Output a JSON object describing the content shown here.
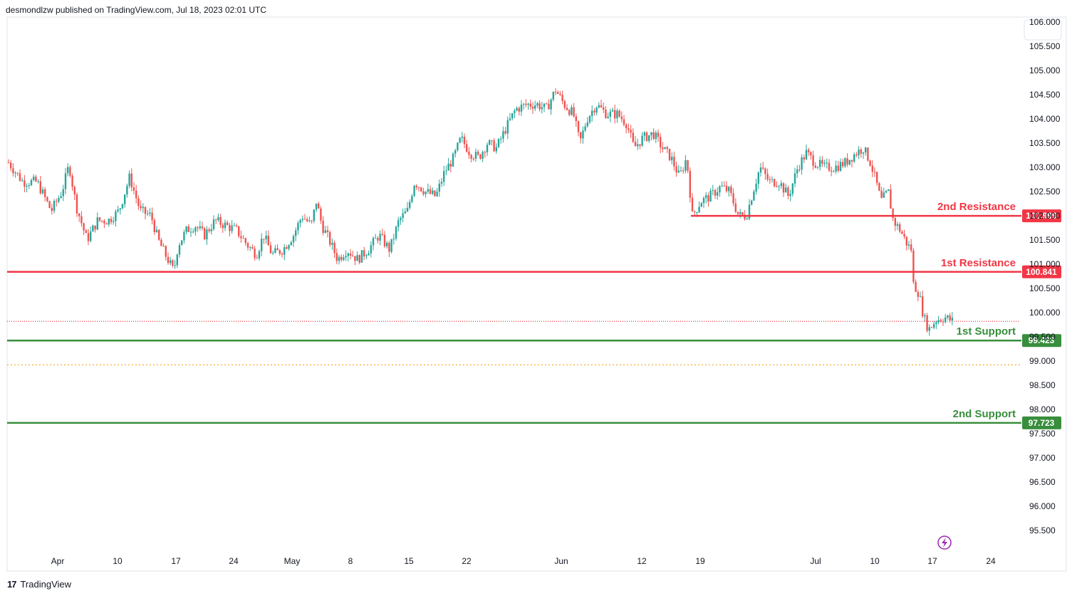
{
  "header": {
    "attribution": "desmondlzw published on TradingView.com, Jul 18, 2023 02:01 UTC"
  },
  "footer": {
    "brand": "TradingView",
    "logo_glyph": "17"
  },
  "colors": {
    "up": "#26a69a",
    "down": "#ef5350",
    "resistance": "#f23645",
    "support": "#388e3c",
    "dotted_orange": "#f5a623",
    "dotted_red": "#f23645",
    "bg": "#ffffff"
  },
  "lightning_icon": "lightning-icon",
  "chart_data": {
    "type": "candlestick",
    "title": "",
    "y_ticks": [
      "106.000",
      "105.500",
      "105.000",
      "104.500",
      "104.000",
      "103.500",
      "103.000",
      "102.500",
      "102.000",
      "101.500",
      "101.000",
      "100.500",
      "100.000",
      "99.500",
      "99.000",
      "98.500",
      "98.000",
      "97.500",
      "97.000",
      "96.500",
      "96.000",
      "95.500"
    ],
    "x_ticks": [
      "Apr",
      "10",
      "17",
      "24",
      "May",
      "8",
      "15",
      "22",
      "Jun",
      "12",
      "19",
      "Jul",
      "10",
      "17",
      "24"
    ],
    "ylim": [
      95.2,
      106.1
    ],
    "levels": [
      {
        "name": "2nd Resistance",
        "value": 101.999,
        "label": "101.999",
        "kind": "resistance"
      },
      {
        "name": "1st Resistance",
        "value": 100.841,
        "label": "100.841",
        "kind": "resistance"
      },
      {
        "name": "1st Support",
        "value": 99.423,
        "label": "99.423",
        "kind": "support"
      },
      {
        "name": "2nd Support",
        "value": 97.723,
        "label": "97.723",
        "kind": "support"
      }
    ],
    "dotted_lines": [
      {
        "value": 99.82,
        "color": "dotted_red"
      },
      {
        "value": 98.92,
        "color": "dotted_orange"
      }
    ],
    "price_path": [
      [
        0,
        103.1
      ],
      [
        20,
        102.7
      ],
      [
        40,
        102.7
      ],
      [
        60,
        102.1
      ],
      [
        75,
        102.5
      ],
      [
        85,
        103.05
      ],
      [
        95,
        102.2
      ],
      [
        110,
        101.5
      ],
      [
        125,
        101.9
      ],
      [
        140,
        101.9
      ],
      [
        155,
        102.1
      ],
      [
        170,
        102.8
      ],
      [
        185,
        102.1
      ],
      [
        200,
        102.0
      ],
      [
        210,
        101.5
      ],
      [
        220,
        101.2
      ],
      [
        232,
        100.85
      ],
      [
        238,
        101.4
      ],
      [
        250,
        101.7
      ],
      [
        262,
        101.8
      ],
      [
        275,
        101.6
      ],
      [
        290,
        101.9
      ],
      [
        305,
        101.8
      ],
      [
        320,
        101.7
      ],
      [
        335,
        101.4
      ],
      [
        348,
        101.2
      ],
      [
        358,
        101.6
      ],
      [
        370,
        101.2
      ],
      [
        385,
        101.3
      ],
      [
        400,
        101.6
      ],
      [
        412,
        102.0
      ],
      [
        425,
        101.8
      ],
      [
        432,
        102.3
      ],
      [
        440,
        101.8
      ],
      [
        450,
        101.5
      ],
      [
        462,
        101.1
      ],
      [
        475,
        101.3
      ],
      [
        490,
        101.1
      ],
      [
        505,
        101.3
      ],
      [
        520,
        101.6
      ],
      [
        535,
        101.3
      ],
      [
        548,
        101.9
      ],
      [
        560,
        102.1
      ],
      [
        570,
        102.7
      ],
      [
        585,
        102.5
      ],
      [
        600,
        102.4
      ],
      [
        612,
        102.9
      ],
      [
        625,
        103.2
      ],
      [
        635,
        103.6
      ],
      [
        648,
        103.3
      ],
      [
        660,
        103.2
      ],
      [
        672,
        103.5
      ],
      [
        685,
        103.4
      ],
      [
        698,
        103.8
      ],
      [
        712,
        104.2
      ],
      [
        728,
        104.3
      ],
      [
        742,
        104.3
      ],
      [
        755,
        104.2
      ],
      [
        768,
        104.6
      ],
      [
        780,
        104.3
      ],
      [
        793,
        104.1
      ],
      [
        802,
        103.5
      ],
      [
        812,
        104.0
      ],
      [
        825,
        104.3
      ],
      [
        840,
        104.1
      ],
      [
        855,
        104.1
      ],
      [
        868,
        103.9
      ],
      [
        878,
        103.4
      ],
      [
        890,
        103.6
      ],
      [
        905,
        103.7
      ],
      [
        918,
        103.4
      ],
      [
        930,
        103.2
      ],
      [
        942,
        102.8
      ],
      [
        952,
        103.2
      ],
      [
        960,
        102.0
      ],
      [
        972,
        102.3
      ],
      [
        985,
        102.4
      ],
      [
        1000,
        102.6
      ],
      [
        1012,
        102.5
      ],
      [
        1025,
        102.0
      ],
      [
        1036,
        102.0
      ],
      [
        1045,
        102.5
      ],
      [
        1055,
        103.0
      ],
      [
        1068,
        102.7
      ],
      [
        1082,
        102.7
      ],
      [
        1095,
        102.4
      ],
      [
        1108,
        103.0
      ],
      [
        1120,
        103.3
      ],
      [
        1132,
        103.1
      ],
      [
        1145,
        103.0
      ],
      [
        1160,
        103.0
      ],
      [
        1175,
        103.1
      ],
      [
        1190,
        103.3
      ],
      [
        1200,
        103.4
      ],
      [
        1210,
        103.1
      ],
      [
        1218,
        102.7
      ],
      [
        1225,
        102.3
      ],
      [
        1235,
        102.5
      ],
      [
        1242,
        101.9
      ],
      [
        1252,
        101.7
      ],
      [
        1262,
        101.4
      ],
      [
        1268,
        101.3
      ],
      [
        1270,
        100.6
      ],
      [
        1278,
        100.4
      ],
      [
        1285,
        99.9
      ],
      [
        1292,
        99.65
      ],
      [
        1302,
        99.85
      ],
      [
        1315,
        99.9
      ],
      [
        1328,
        99.8
      ]
    ]
  }
}
